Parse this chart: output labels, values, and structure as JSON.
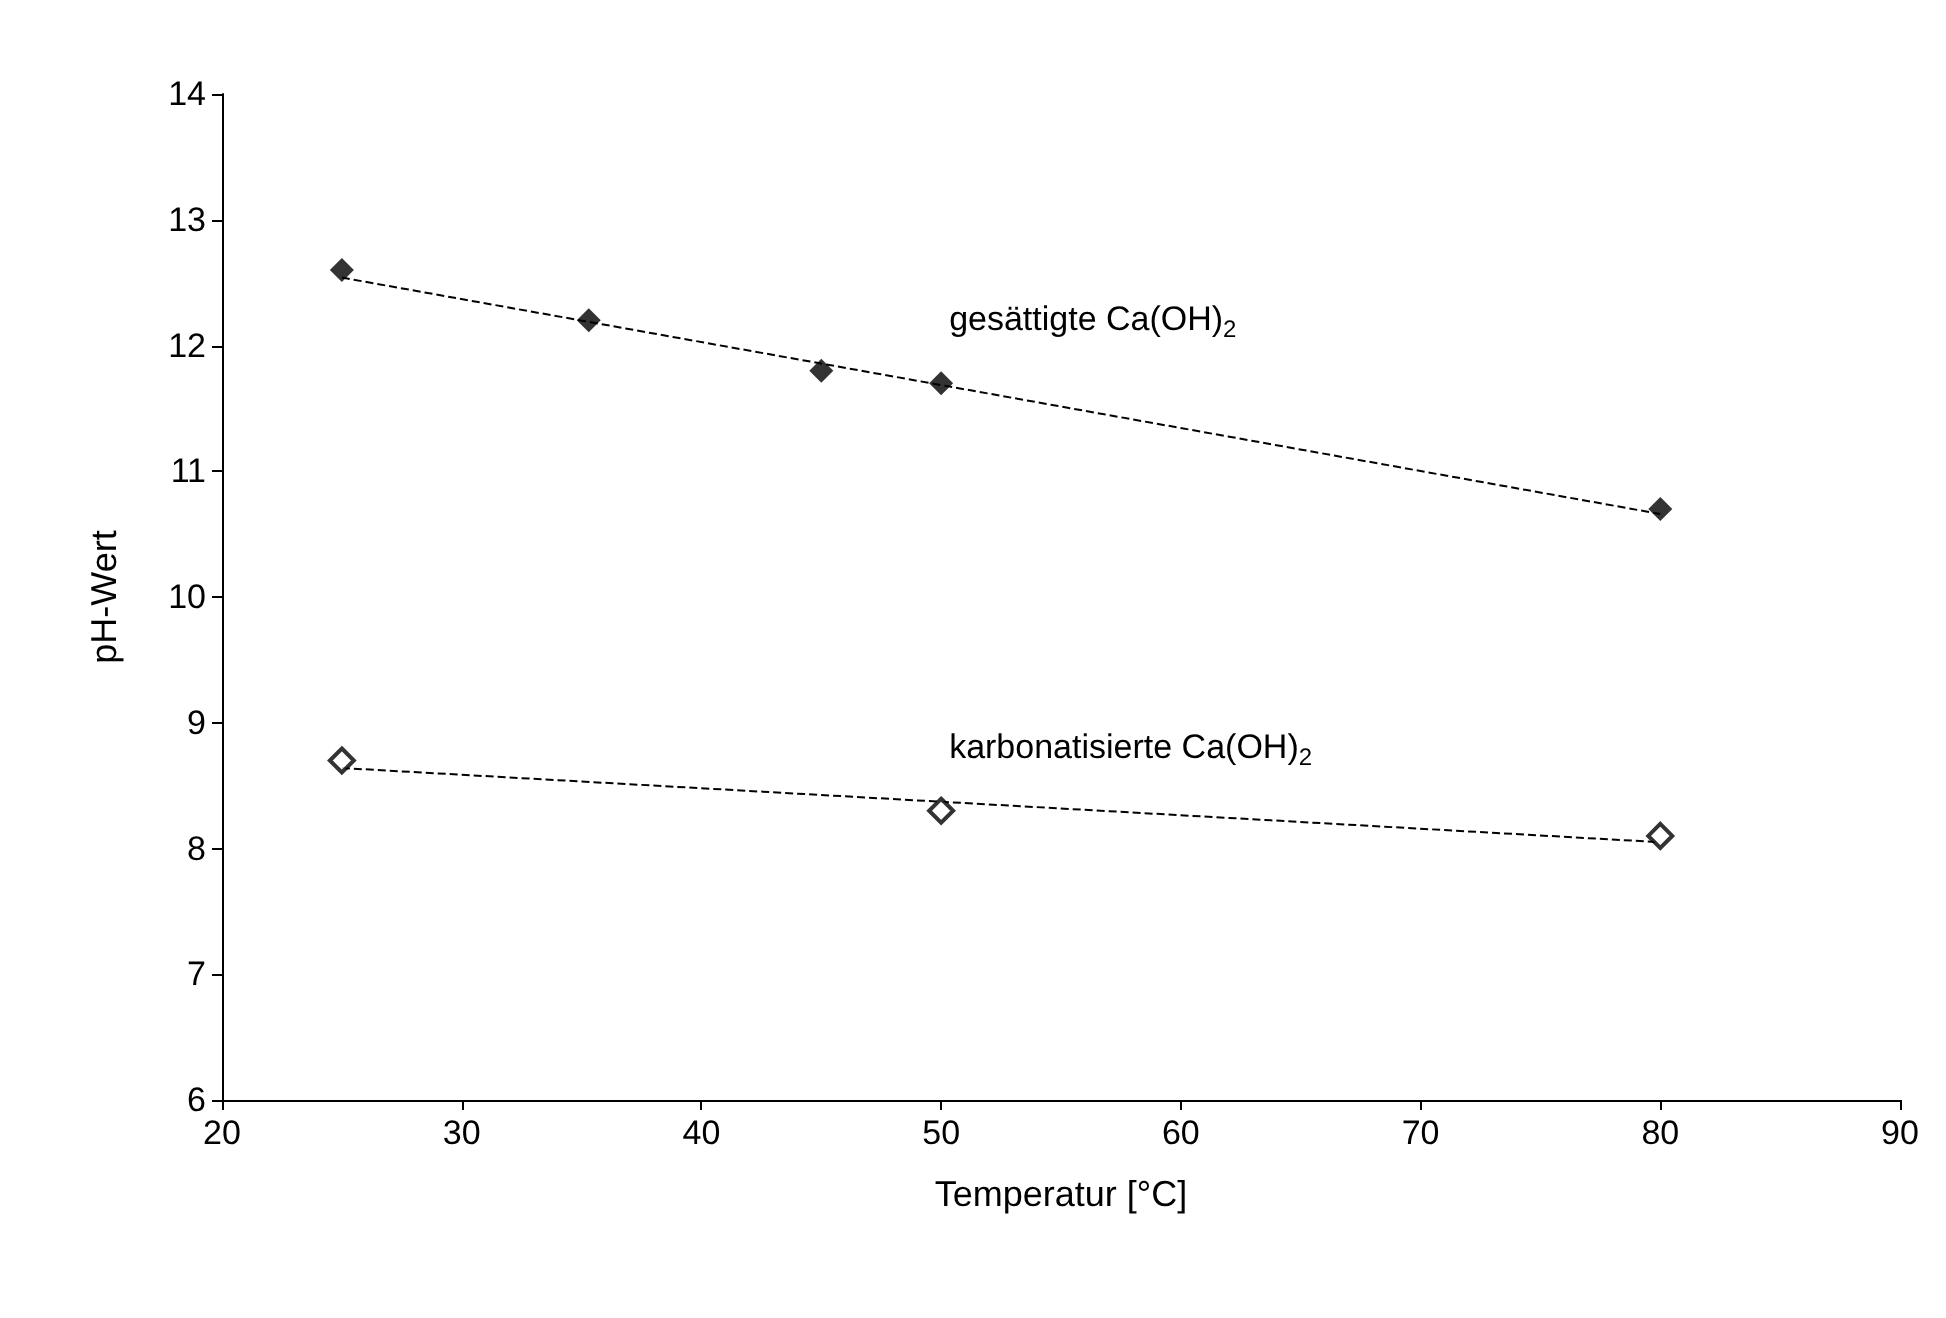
{
  "chart_data": {
    "type": "scatter",
    "xlabel": "Temperatur [°C]",
    "ylabel": "pH-Wert",
    "xlim": [
      20,
      90
    ],
    "xticks": [
      20,
      30,
      40,
      50,
      60,
      70,
      80,
      90
    ],
    "ylim": [
      6,
      14
    ],
    "yticks": [
      6,
      7,
      8,
      9,
      10,
      11,
      12,
      13,
      14
    ],
    "grid": false,
    "marker": "diamond",
    "series": [
      {
        "color": "#000000",
        "x": [
          25,
          35.3,
          45,
          50,
          80
        ],
        "values": [
          12.6,
          12.2,
          11.8,
          11.7,
          10.7
        ]
      },
      {
        "color": "#ffffff",
        "x": [
          25,
          50,
          80
        ],
        "values": [
          8.7,
          8.3,
          8.1
        ]
      },
      {
        "type": "line",
        "color": "#000000",
        "marker": "none",
        "line_style": "dashed",
        "x": [
          25,
          80
        ],
        "values": [
          12.54,
          10.66
        ]
      },
      {
        "type": "line",
        "color": "#000000",
        "marker": "none",
        "line_style": "dashed",
        "x": [
          25,
          80
        ],
        "values": [
          8.64,
          8.05
        ]
      }
    ],
    "annotations": [
      {
        "text": "gesättigte Ca(OH)$_{2}$",
        "x": 50,
        "y": 11.7
      },
      {
        "text": "karbonatisierte Ca(OH)$_{2}$",
        "x": 50,
        "y": 8.3
      }
    ]
  }
}
